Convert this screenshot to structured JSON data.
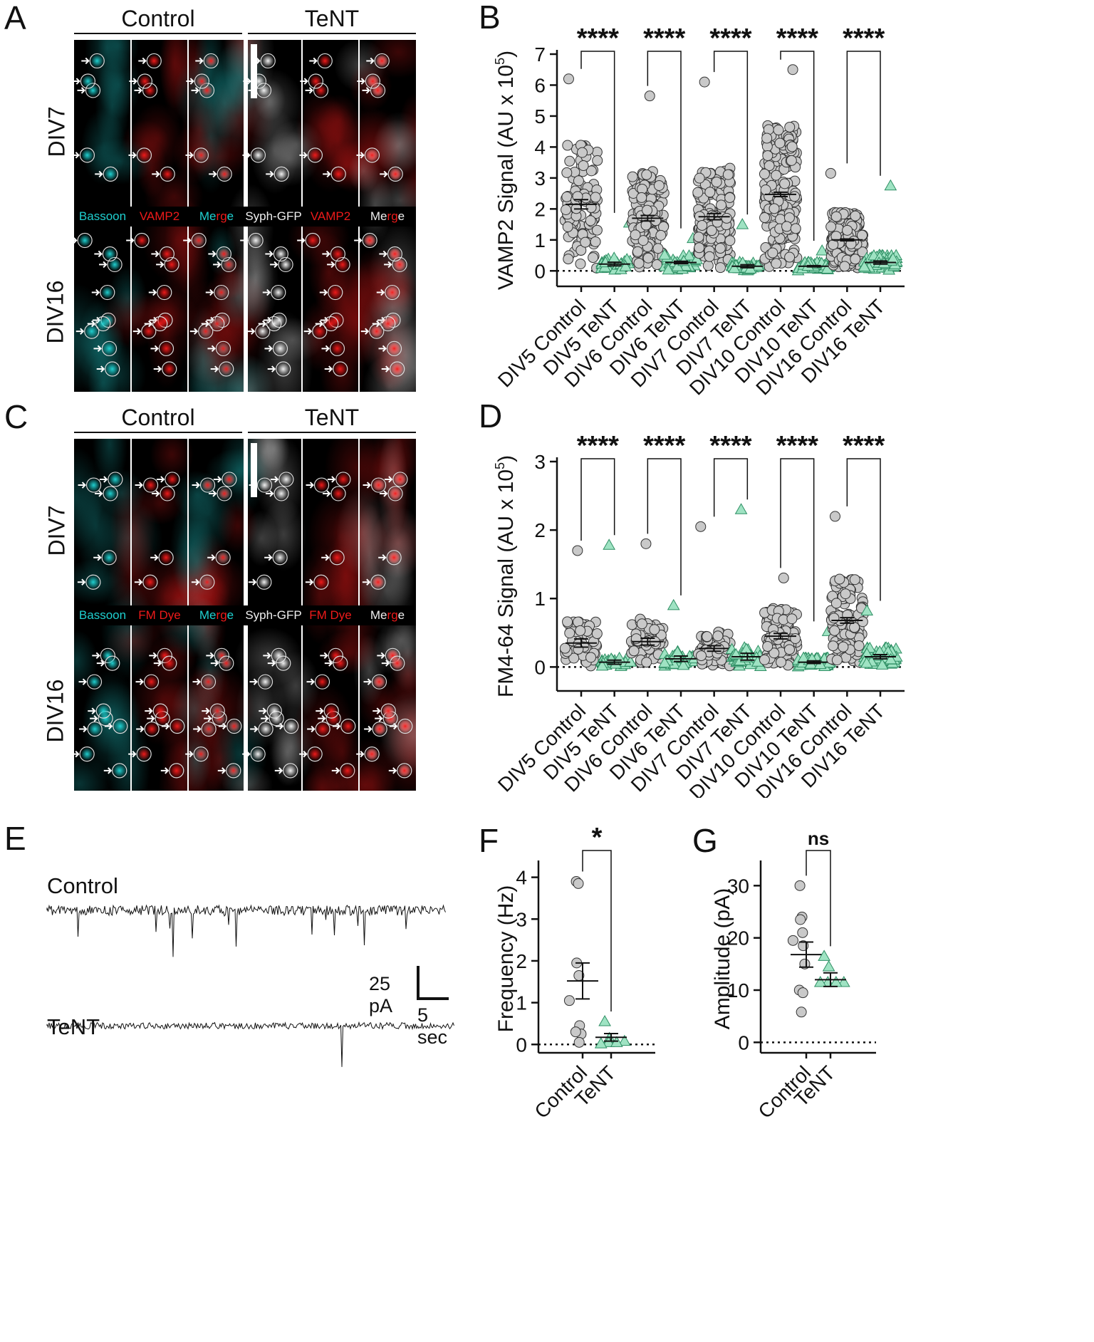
{
  "colors": {
    "cyan": "#1fd0d0",
    "red": "#ee1a1a",
    "white": "#f0f0f0",
    "teal": "#4fc49a",
    "tealFill": "#9fe3c3",
    "greyFill": "#c9c9c9",
    "ink": "#111111"
  },
  "panels": {
    "A": {
      "letter": "A",
      "control": "Control",
      "tent": "TeNT",
      "row1": "DIV7",
      "row2": "DIV16",
      "channels": [
        {
          "label": "Bassoon",
          "color": "#1fd0d0"
        },
        {
          "label": "VAMP2",
          "color": "#ee1a1a"
        },
        {
          "label": "Merge",
          "color": "merge"
        },
        {
          "label": "Syph-GFP",
          "color": "#f0f0f0"
        },
        {
          "label": "VAMP2",
          "color": "#ee1a1a"
        },
        {
          "label": "Merge",
          "color": "merge"
        }
      ]
    },
    "C": {
      "letter": "C",
      "control": "Control",
      "tent": "TeNT",
      "row1": "DIV7",
      "row2": "DIV16",
      "channels": [
        {
          "label": "Bassoon",
          "color": "#1fd0d0"
        },
        {
          "label": "FM Dye",
          "color": "#ee1a1a"
        },
        {
          "label": "Merge",
          "color": "merge"
        },
        {
          "label": "Syph-GFP",
          "color": "#f0f0f0"
        },
        {
          "label": "FM Dye",
          "color": "#ee1a1a"
        },
        {
          "label": "Merge",
          "color": "merge"
        }
      ]
    },
    "E": {
      "letter": "E",
      "control": "Control",
      "tent": "TeNT",
      "scale_y": "25 pA",
      "scale_x": "5 sec"
    }
  },
  "chart_data": [
    {
      "id": "B",
      "letter": "B",
      "type": "scatter",
      "ylabel": "VAMP2 Signal (AU x 10",
      "ylabel_sup": "5",
      "ylabel_close": ")",
      "ylim": [
        -0.5,
        7
      ],
      "yticks": [
        "0",
        "1",
        "2",
        "3",
        "4",
        "5",
        "6",
        "7"
      ],
      "categories": [
        "DIV5 Control",
        "DIV5 TeNT",
        "DIV6 Control",
        "DIV6 TeNT",
        "DIV7 Control",
        "DIV7 TeNT",
        "DIV10 Control",
        "DIV10 TeNT",
        "DIV16 Control",
        "DIV16 TeNT"
      ],
      "means": [
        2.15,
        0.22,
        1.7,
        0.27,
        1.75,
        0.15,
        2.47,
        0.15,
        1.0,
        0.27
      ],
      "sem": [
        0.15,
        0.06,
        0.09,
        0.04,
        0.1,
        0.05,
        0.07,
        0.02,
        0.03,
        0.05
      ],
      "range_max": [
        6.2,
        1.55,
        5.65,
        1.05,
        6.1,
        1.5,
        6.5,
        0.65,
        3.15,
        2.75
      ],
      "n_points": [
        110,
        28,
        170,
        45,
        190,
        38,
        240,
        45,
        210,
        95
      ],
      "significance": [
        "****",
        "****",
        "****",
        "****",
        "****"
      ]
    },
    {
      "id": "D",
      "letter": "D",
      "type": "scatter",
      "ylabel": "FM4-64 Signal (AU x 10",
      "ylabel_sup": "5",
      "ylabel_close": ")",
      "ylim": [
        -0.35,
        3
      ],
      "yticks": [
        "0",
        "1",
        "2",
        "3"
      ],
      "categories": [
        "DIV5 Control",
        "DIV5 TeNT",
        "DIV6 Control",
        "DIV6 TeNT",
        "DIV7 Control",
        "DIV7 TeNT",
        "DIV10 Control",
        "DIV10 TeNT",
        "DIV16 Control",
        "DIV16 TeNT"
      ],
      "means": [
        0.35,
        0.07,
        0.37,
        0.12,
        0.27,
        0.15,
        0.45,
        0.07,
        0.68,
        0.15
      ],
      "sem": [
        0.06,
        0.03,
        0.05,
        0.04,
        0.04,
        0.05,
        0.04,
        0.02,
        0.04,
        0.03
      ],
      "range_max": [
        1.7,
        1.78,
        1.8,
        0.9,
        2.05,
        2.3,
        1.3,
        0.52,
        2.2,
        0.82
      ],
      "n_points": [
        60,
        30,
        60,
        40,
        90,
        45,
        110,
        70,
        140,
        70
      ],
      "significance": [
        "****",
        "****",
        "****",
        "****",
        "****"
      ]
    },
    {
      "id": "F",
      "letter": "F",
      "type": "scatter",
      "ylabel": "Frequency (Hz)",
      "ylim": [
        -0.2,
        4.3
      ],
      "yticks": [
        "0",
        "1",
        "2",
        "3",
        "4"
      ],
      "categories": [
        "Control",
        "TeNT"
      ],
      "points": [
        [
          3.9,
          3.85,
          1.95,
          1.65,
          1.05,
          0.45,
          0.25,
          0.3,
          0.05
        ],
        [
          0.55,
          0.15,
          0.08,
          0.05,
          0.05,
          0.02
        ]
      ],
      "means": [
        1.52,
        0.17
      ],
      "sem": [
        0.43,
        0.09
      ],
      "significance": [
        "*"
      ]
    },
    {
      "id": "G",
      "letter": "G",
      "type": "scatter",
      "ylabel": "Amplitude (pA)",
      "ylim": [
        -2,
        34
      ],
      "yticks": [
        "0",
        "10",
        "20",
        "30"
      ],
      "categories": [
        "Control",
        "TeNT"
      ],
      "points": [
        [
          30,
          24,
          23.5,
          21,
          19.5,
          18.5,
          15,
          10,
          9.5,
          5.8
        ],
        [
          16.5,
          14.5,
          11.5,
          11.5,
          11.5,
          11.5
        ]
      ],
      "means": [
        16.8,
        12.0
      ],
      "sem": [
        2.4,
        1.3
      ],
      "significance": [
        "ns"
      ]
    }
  ]
}
